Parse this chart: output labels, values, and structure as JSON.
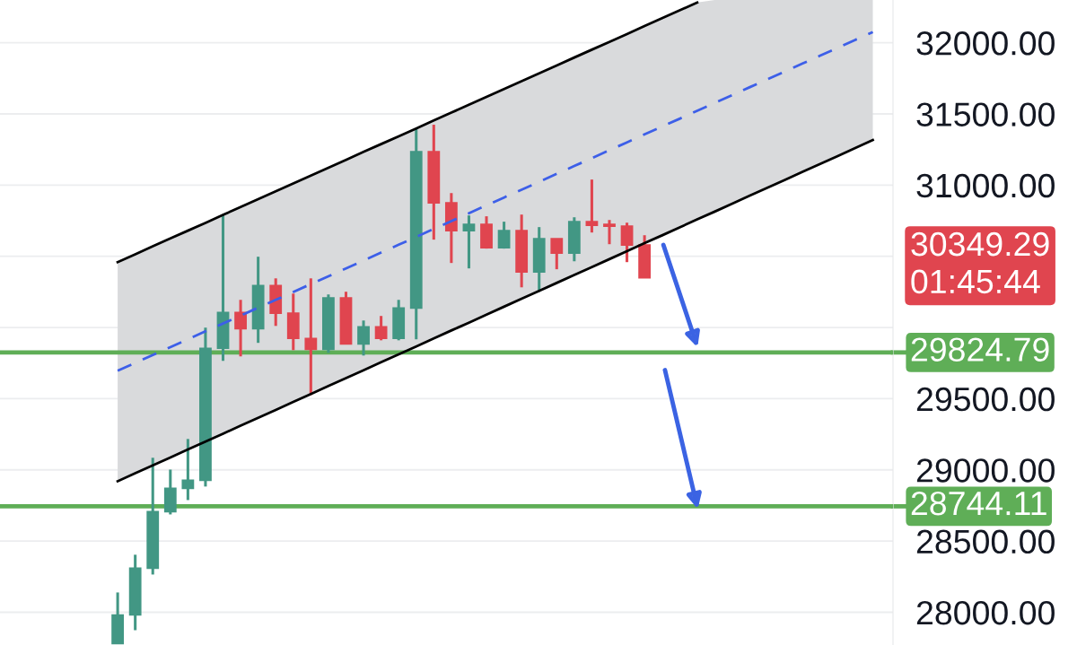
{
  "chart_data": {
    "type": "candlestick",
    "categories": [
      null,
      null,
      null,
      null,
      null,
      null,
      null,
      null,
      null,
      null,
      null,
      null,
      null,
      null,
      null,
      null,
      null,
      null,
      null,
      null,
      null,
      null,
      null,
      null,
      null,
      null,
      null,
      null,
      null,
      null,
      null,
      null,
      null,
      null,
      null,
      null,
      null,
      null,
      null,
      null,
      null,
      null,
      null,
      null
    ],
    "series": [
      {
        "type": "line",
        "line_style": "dashed",
        "color": "#3d5fe8",
        "values": [
          29696,
          29751,
          29807,
          29862,
          29917,
          29973,
          30028,
          30083,
          30139,
          30194,
          30249,
          30305,
          30360,
          30415,
          30470,
          30526,
          30581,
          30636,
          30692,
          30747,
          30802,
          30858,
          30913,
          30968,
          31023,
          31079,
          31134,
          31189,
          31245,
          31300,
          31356,
          31411,
          31466,
          31522,
          31577,
          31632,
          31688,
          31743,
          31798,
          31854,
          31909,
          31964,
          32020,
          32075
        ],
        "lower": [
          28920,
          28976,
          29031,
          29087,
          29143,
          29199,
          29254,
          29310,
          29366,
          29421,
          29477,
          29533,
          29589,
          29644,
          29700,
          29756,
          29812,
          29867,
          29923,
          29979,
          30034,
          30090,
          30146,
          30202,
          30257,
          30313,
          30369,
          30424,
          30480,
          30536,
          30592,
          30647,
          30703,
          30759,
          30814,
          30870,
          30926,
          30981,
          31037,
          31093,
          31149,
          31204,
          31260,
          31316
        ],
        "upper": [
          30459,
          30514,
          30570,
          30625,
          30680,
          30735,
          30791,
          30846,
          30901,
          30956,
          31012,
          31067,
          31122,
          31177,
          31233,
          31288,
          31343,
          31398,
          31454,
          31509,
          31564,
          31619,
          31675,
          31730,
          31785,
          31840,
          31896,
          31951,
          32006,
          32061,
          32117,
          32172,
          32227,
          32282,
          32300,
          32300,
          32300,
          32300,
          32300,
          32300,
          32300,
          32300,
          32300,
          32300
        ]
      },
      {
        "type": "line",
        "line_style": "solid",
        "color": "#000000",
        "values": [
          30459,
          30514,
          30570,
          30625,
          30680,
          30735,
          30791,
          30846,
          30901,
          30956,
          31012,
          31067,
          31122,
          31177,
          31233,
          31288,
          31343,
          31398,
          31454,
          31509,
          31564,
          31619,
          31675,
          31730,
          31785,
          31840,
          31896,
          31951,
          32006,
          32061,
          32117,
          32172,
          32227,
          32282,
          null,
          null,
          null,
          null,
          null,
          null,
          null,
          null,
          null,
          null
        ]
      },
      {
        "type": "line",
        "line_style": "solid",
        "color": "#000000",
        "values": [
          28920,
          28976,
          29031,
          29087,
          29143,
          29199,
          29254,
          29310,
          29366,
          29421,
          29477,
          29533,
          29589,
          29644,
          29700,
          29756,
          29812,
          29867,
          29923,
          29979,
          30034,
          30090,
          30146,
          30202,
          30257,
          30313,
          30369,
          30424,
          30480,
          30536,
          30592,
          30647,
          30703,
          30759,
          30814,
          30870,
          30926,
          30981,
          31037,
          31093,
          31149,
          31204,
          31260,
          31316
        ]
      },
      {
        "ohlc": [
          [
            27780,
            28139,
            27780,
            27981
          ],
          [
            27981,
            28404,
            27874,
            28309
          ],
          [
            28309,
            29085,
            28265,
            28706
          ],
          [
            28706,
            29002,
            28687,
            28870
          ],
          [
            28870,
            29217,
            28788,
            28927
          ],
          [
            28927,
            29999,
            28883,
            29854
          ],
          [
            29854,
            30793,
            29765,
            30106
          ],
          [
            30106,
            30194,
            29797,
            29992
          ],
          [
            29992,
            30497,
            29892,
            30295
          ],
          [
            30295,
            30345,
            30011,
            30100
          ],
          [
            30100,
            30238,
            29841,
            29923
          ],
          [
            29923,
            30345,
            29526,
            29847
          ],
          [
            29847,
            30232,
            29822,
            30207
          ],
          [
            30207,
            30251,
            29885,
            29885
          ],
          [
            29885,
            30049,
            29803,
            30005
          ],
          [
            30005,
            30081,
            29910,
            29923
          ],
          [
            29923,
            30194,
            29910,
            30137
          ],
          [
            30137,
            31398,
            29917,
            31235
          ],
          [
            31235,
            31424,
            30617,
            30875
          ],
          [
            30875,
            30944,
            30453,
            30680
          ],
          [
            30680,
            30787,
            30415,
            30724
          ],
          [
            30724,
            30781,
            30554,
            30560
          ],
          [
            30560,
            30743,
            30554,
            30680
          ],
          [
            30680,
            30793,
            30282,
            30390
          ],
          [
            30390,
            30705,
            30251,
            30623
          ],
          [
            30623,
            30623,
            30409,
            30522
          ],
          [
            30522,
            30774,
            30465,
            30743
          ],
          [
            30743,
            31039,
            30667,
            30718
          ],
          [
            30724,
            30755,
            30585,
            30711
          ],
          [
            30711,
            30736,
            30459,
            30579
          ],
          [
            30579,
            30648,
            30349.29,
            30349.29
          ],
          null,
          null,
          null,
          null,
          null,
          null,
          null,
          null,
          null,
          null,
          null,
          null,
          null
        ],
        "colors": [
          "#429784",
          "#429784",
          "#429784",
          "#429784",
          "#429784",
          "#429784",
          "#429784",
          "#e0454f",
          "#429784",
          "#e0454f",
          "#e0454f",
          "#e0454f",
          "#429784",
          "#e0454f",
          "#429784",
          "#e0454f",
          "#429784",
          "#429784",
          "#e0454f",
          "#e0454f",
          "#429784",
          "#e0454f",
          "#429784",
          "#e0454f",
          "#429784",
          "#e0454f",
          "#429784",
          "#e0454f",
          "#e0454f",
          "#e0454f",
          "#e0454f",
          null,
          null,
          null,
          null,
          null,
          null,
          null,
          null,
          null,
          null,
          null,
          null,
          null
        ]
      }
    ],
    "ylim": [
      27770,
      32300
    ],
    "yticks": [
      {
        "value": 28000,
        "label": "28000.00"
      },
      {
        "value": 28500,
        "label": "28500.00"
      },
      {
        "value": 29000,
        "label": "29000.00"
      },
      {
        "value": 29500,
        "label": "29500.00"
      },
      {
        "value": 30000,
        "label": null
      },
      {
        "value": 30500,
        "label": null
      },
      {
        "value": 31000,
        "label": "31000.00"
      },
      {
        "value": 31500,
        "label": "31500.00"
      },
      {
        "value": 32000,
        "label": "32000.00"
      }
    ],
    "tick_labels": "y",
    "grid": "y",
    "ref_lines": [
      {
        "axis": "y",
        "value": 29824.79,
        "label": "29824.79",
        "color": "#5fae57"
      },
      {
        "axis": "y",
        "value": 28744.11,
        "label": "28744.11",
        "color": "#5fae57"
      }
    ],
    "annotations": [
      "30349.29\n01:45:44"
    ]
  }
}
